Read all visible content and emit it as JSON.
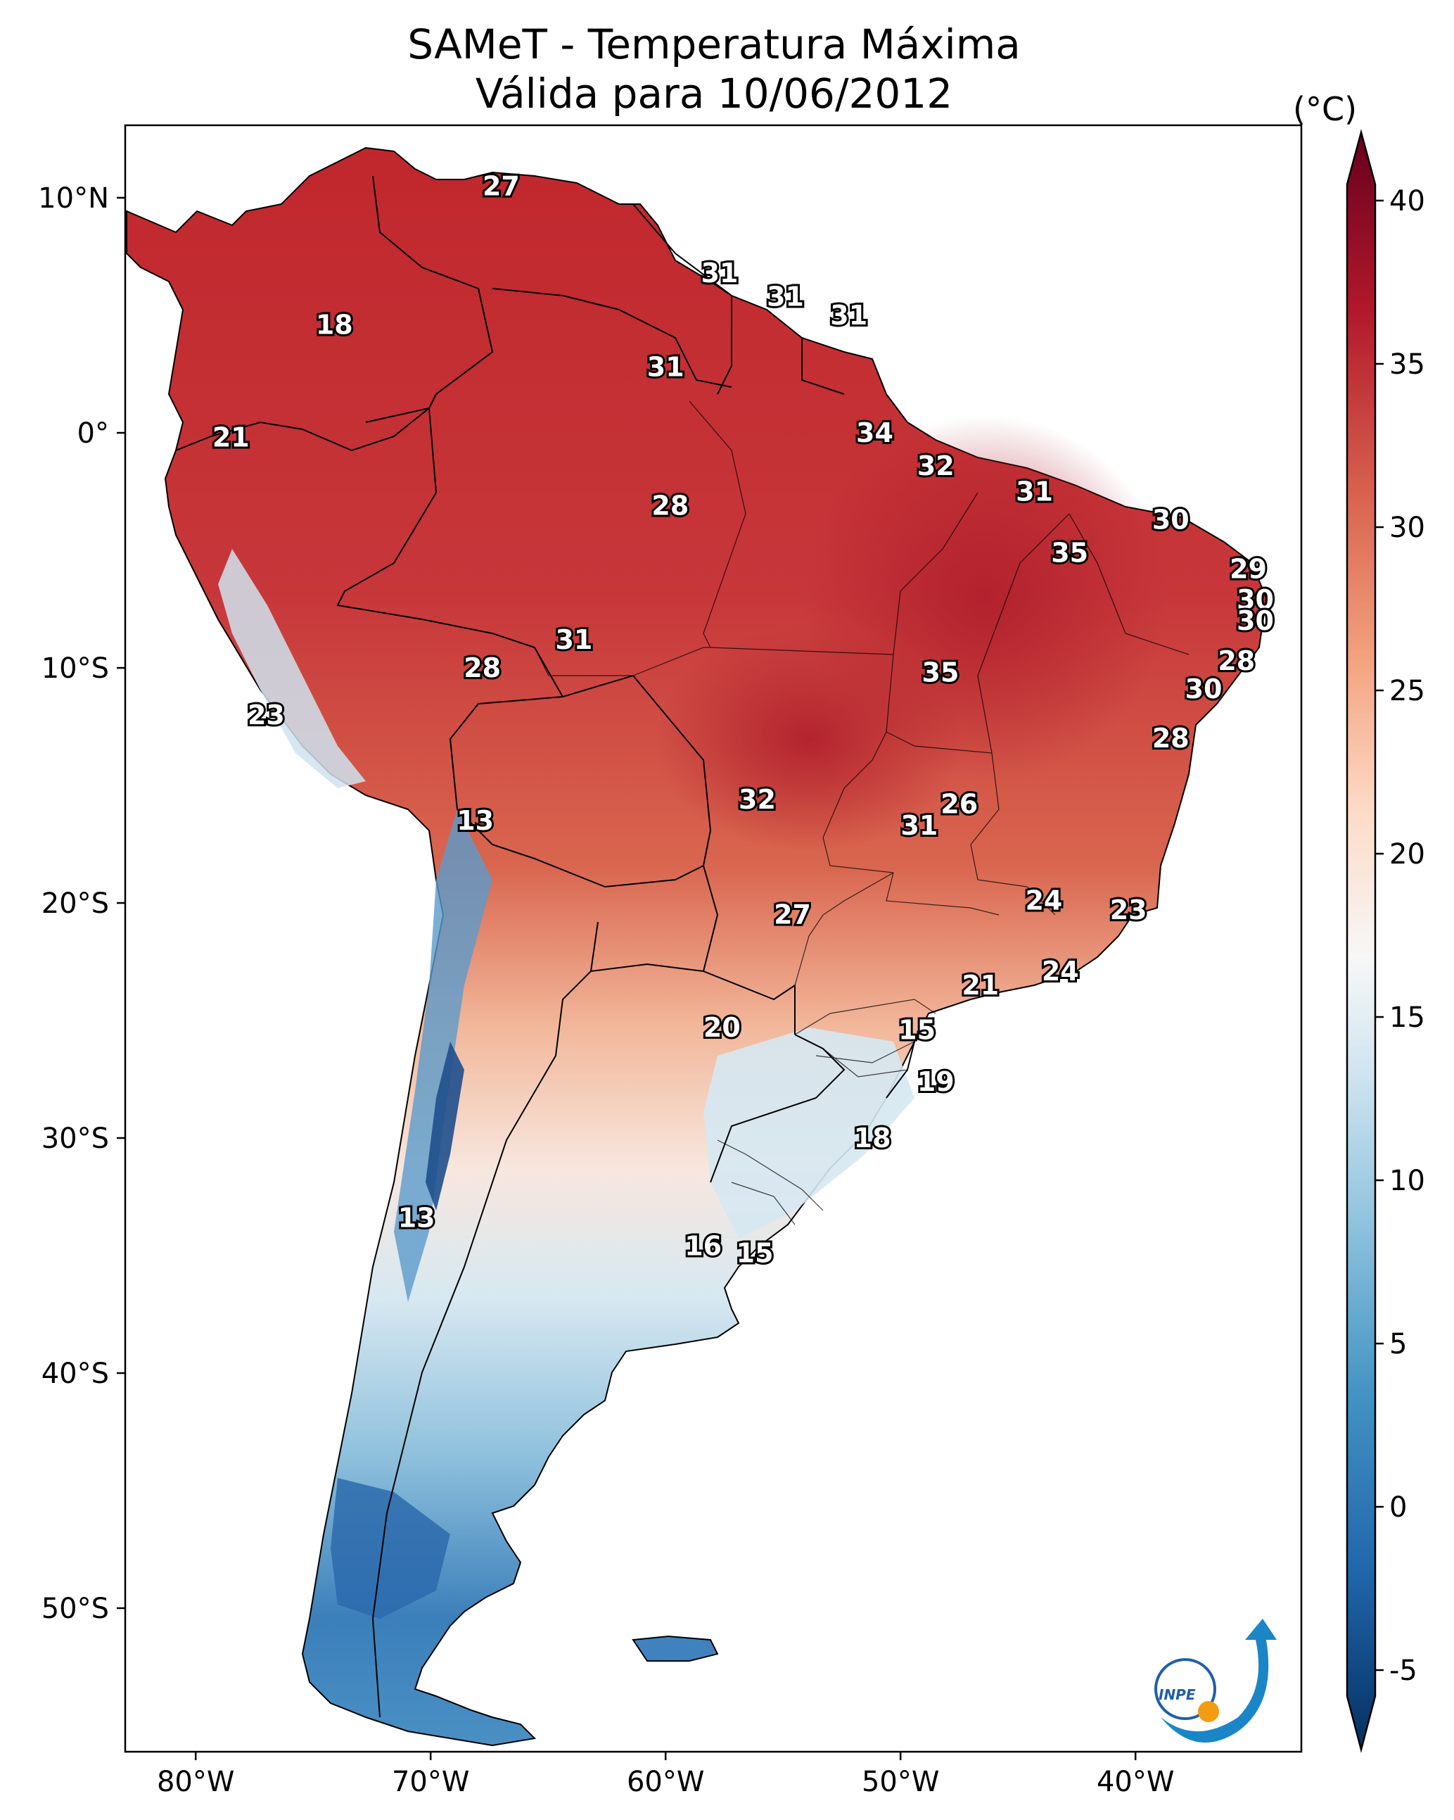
{
  "title": {
    "line1": "SAMeT - Temperatura Máxima",
    "line2": "Válida para 10/06/2012"
  },
  "colorbar": {
    "unit": "(°C)",
    "ticks": [
      "40",
      "35",
      "30",
      "25",
      "20",
      "15",
      "10",
      "5",
      "0",
      "-5"
    ],
    "colors": [
      "#053061",
      "#2166ac",
      "#4393c3",
      "#92c5de",
      "#d1e5f0",
      "#f7f7f7",
      "#fddbc7",
      "#f4a582",
      "#d6604d",
      "#b2182b",
      "#67001f"
    ]
  },
  "axes": {
    "lat_ticks": [
      "10°N",
      "0°",
      "10°S",
      "20°S",
      "30°S",
      "40°S",
      "50°S"
    ],
    "lon_ticks": [
      "80°W",
      "70°W",
      "60°W",
      "50°W",
      "40°W"
    ]
  },
  "city_values": [
    {
      "label": "27",
      "lon": -67.0,
      "lat": 10.5
    },
    {
      "label": "18",
      "lon": -74.1,
      "lat": 4.6
    },
    {
      "label": "31",
      "lon": -57.7,
      "lat": 6.8
    },
    {
      "label": "31",
      "lon": -54.9,
      "lat": 5.8
    },
    {
      "label": "31",
      "lon": -52.2,
      "lat": 5.0
    },
    {
      "label": "31",
      "lon": -60.0,
      "lat": 2.8
    },
    {
      "label": "21",
      "lon": -78.5,
      "lat": -0.2
    },
    {
      "label": "34",
      "lon": -51.1,
      "lat": 0.0
    },
    {
      "label": "32",
      "lon": -48.5,
      "lat": -1.4
    },
    {
      "label": "28",
      "lon": -59.8,
      "lat": -3.1
    },
    {
      "label": "31",
      "lon": -44.3,
      "lat": -2.5
    },
    {
      "label": "30",
      "lon": -38.5,
      "lat": -3.7
    },
    {
      "label": "35",
      "lon": -42.8,
      "lat": -5.1
    },
    {
      "label": "29",
      "lon": -35.2,
      "lat": -5.8
    },
    {
      "label": "30",
      "lon": -34.9,
      "lat": -7.1
    },
    {
      "label": "30",
      "lon": -34.9,
      "lat": -8.0
    },
    {
      "label": "31",
      "lon": -63.9,
      "lat": -8.8
    },
    {
      "label": "28",
      "lon": -67.8,
      "lat": -10.0
    },
    {
      "label": "35",
      "lon": -48.3,
      "lat": -10.2
    },
    {
      "label": "28",
      "lon": -35.7,
      "lat": -9.7
    },
    {
      "label": "30",
      "lon": -37.1,
      "lat": -10.9
    },
    {
      "label": "23",
      "lon": -77.0,
      "lat": -12.0
    },
    {
      "label": "28",
      "lon": -38.5,
      "lat": -13.0
    },
    {
      "label": "13",
      "lon": -68.1,
      "lat": -16.5
    },
    {
      "label": "32",
      "lon": -56.1,
      "lat": -15.6
    },
    {
      "label": "26",
      "lon": -47.5,
      "lat": -15.8
    },
    {
      "label": "31",
      "lon": -49.2,
      "lat": -16.7
    },
    {
      "label": "24",
      "lon": -43.9,
      "lat": -19.9
    },
    {
      "label": "23",
      "lon": -40.3,
      "lat": -20.3
    },
    {
      "label": "27",
      "lon": -54.6,
      "lat": -20.5
    },
    {
      "label": "21",
      "lon": -46.6,
      "lat": -23.5
    },
    {
      "label": "24",
      "lon": -43.2,
      "lat": -22.9
    },
    {
      "label": "20",
      "lon": -57.6,
      "lat": -25.3
    },
    {
      "label": "15",
      "lon": -49.3,
      "lat": -25.4
    },
    {
      "label": "19",
      "lon": -48.5,
      "lat": -27.6
    },
    {
      "label": "18",
      "lon": -51.2,
      "lat": -30.0
    },
    {
      "label": "13",
      "lon": -70.6,
      "lat": -33.4
    },
    {
      "label": "16",
      "lon": -58.4,
      "lat": -34.6
    },
    {
      "label": "15",
      "lon": -56.2,
      "lat": -34.9
    }
  ],
  "logo": {
    "text": "INPE"
  }
}
